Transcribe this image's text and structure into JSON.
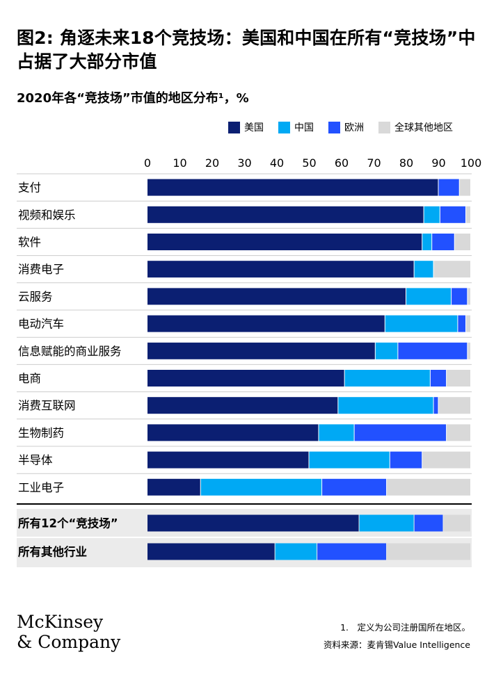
{
  "title": "图2: 角逐未来18个竞技场：美国和中国在所有“竞技场”中占据了大部分市值",
  "subtitle": "2020年各“竞技场”市值的地区分布¹，%",
  "colors": {
    "us": "#0b1f72",
    "china": "#00a9f4",
    "europe": "#2251ff",
    "rest": "#d9d9d9",
    "summary_band": "#ebebeb",
    "grid": "#cccccc"
  },
  "chart_data": {
    "type": "bar",
    "orientation": "horizontal",
    "stacked": true,
    "xlim": [
      0,
      100
    ],
    "x_ticks": [
      "0",
      "10",
      "20",
      "30",
      "40",
      "50",
      "60",
      "70",
      "80",
      "90",
      "100"
    ],
    "legend_position": "top-right",
    "categories": [
      "支付",
      "视频和娱乐",
      "软件",
      "消费电子",
      "云服务",
      "电动汽车",
      "信息赋能的商业服务",
      "电商",
      "消费互联网",
      "生物制药",
      "半导体",
      "工业电子",
      "所有12个“竞技场”",
      "所有其他行业"
    ],
    "summary_categories": [
      "所有12个“竞技场”",
      "所有其他行业"
    ],
    "series": [
      {
        "name": "美国",
        "key": "us",
        "values": [
          90,
          85.5,
          85,
          82.5,
          80,
          73.5,
          70.5,
          61,
          59,
          53,
          50,
          16.5,
          65.5,
          39.5
        ]
      },
      {
        "name": "中国",
        "key": "china",
        "values": [
          0,
          5,
          3,
          6,
          14,
          22.5,
          7,
          26.5,
          29.5,
          11,
          25,
          37.5,
          17,
          13
        ]
      },
      {
        "name": "欧洲",
        "key": "europe",
        "values": [
          6.5,
          8,
          7,
          0,
          5,
          2.5,
          21.5,
          5,
          1.5,
          28.5,
          10,
          20,
          9,
          21.5
        ]
      },
      {
        "name": "全球其他地区",
        "key": "rest",
        "values": [
          3.5,
          1.5,
          5,
          11.5,
          1,
          1.5,
          1,
          7.5,
          10,
          7.5,
          15,
          26,
          8.5,
          26
        ]
      }
    ]
  },
  "footnote": "1.　定义为公司注册国所在地区。",
  "source": "资料来源：麦肯锡Value Intelligence",
  "logo": {
    "line1": "McKinsey",
    "line2": "& Company"
  }
}
